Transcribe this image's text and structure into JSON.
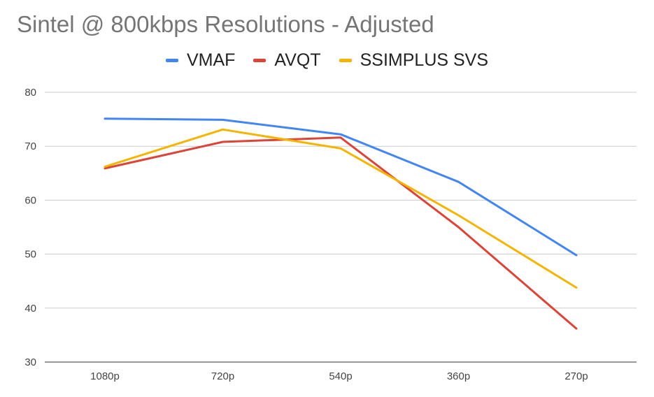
{
  "chart_data": {
    "type": "line",
    "title": "Sintel @ 800kbps Resolutions - Adjusted",
    "xlabel": "",
    "ylabel": "",
    "categories": [
      "1080p",
      "720p",
      "540p",
      "360p",
      "270p"
    ],
    "ylim": [
      30,
      80
    ],
    "yticks": [
      30,
      40,
      50,
      60,
      70,
      80
    ],
    "grid": true,
    "legend_position": "top",
    "series": [
      {
        "name": "VMAF",
        "color": "#4285f4",
        "values": [
          75.1,
          74.9,
          72.2,
          63.4,
          49.8
        ]
      },
      {
        "name": "AVQT",
        "color": "#db4437",
        "values": [
          65.9,
          70.8,
          71.6,
          55.0,
          36.2
        ]
      },
      {
        "name": "SSIMPLUS SVS",
        "color": "#f4b400",
        "values": [
          66.2,
          73.1,
          69.6,
          57.2,
          43.8
        ]
      }
    ]
  }
}
